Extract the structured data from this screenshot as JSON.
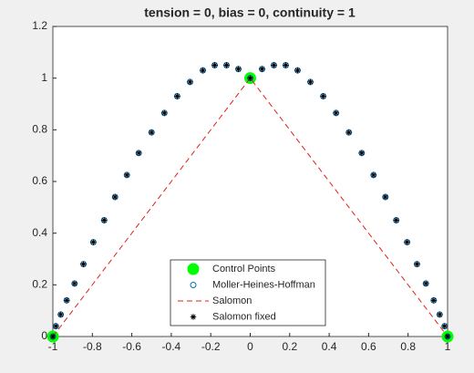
{
  "chart_data": {
    "type": "scatter",
    "title": "tension = 0, bias = 0, continuity = 1",
    "xlim": [
      -1,
      1
    ],
    "ylim": [
      0,
      1.2
    ],
    "xticks": [
      -1,
      -0.8,
      -0.6,
      -0.4,
      -0.2,
      0,
      0.2,
      0.4,
      0.6,
      0.8,
      1
    ],
    "yticks": [
      0,
      0.2,
      0.4,
      0.6,
      0.8,
      1,
      1.2
    ],
    "legend": "south",
    "series": [
      {
        "name": "Control Points",
        "color": "#00ff00",
        "marker": "filled-circle",
        "x": [
          -1,
          0,
          1
        ],
        "values": [
          0,
          1,
          0
        ]
      },
      {
        "name": "Moller-Heines-Hoffman",
        "color": "#0072bd",
        "marker": "circle",
        "x": [
          -1,
          -0.985,
          -0.96,
          -0.93,
          -0.89,
          -0.845,
          -0.795,
          -0.74,
          -0.685,
          -0.625,
          -0.565,
          -0.5,
          -0.435,
          -0.37,
          -0.305,
          -0.24,
          -0.18,
          -0.12,
          -0.06,
          0,
          0.06,
          0.12,
          0.18,
          0.24,
          0.305,
          0.37,
          0.435,
          0.5,
          0.565,
          0.625,
          0.685,
          0.74,
          0.795,
          0.845,
          0.89,
          0.93,
          0.96,
          0.985,
          1
        ],
        "values": [
          0,
          0.04,
          0.085,
          0.14,
          0.205,
          0.28,
          0.365,
          0.45,
          0.54,
          0.625,
          0.71,
          0.79,
          0.865,
          0.93,
          0.985,
          1.03,
          1.05,
          1.05,
          1.035,
          1,
          1.035,
          1.05,
          1.05,
          1.03,
          0.985,
          0.93,
          0.865,
          0.79,
          0.71,
          0.625,
          0.54,
          0.45,
          0.365,
          0.28,
          0.205,
          0.14,
          0.085,
          0.04,
          0
        ]
      },
      {
        "name": "Salomon",
        "color": "#e0201b",
        "marker": "dashed-line",
        "x": [
          -1,
          0,
          1
        ],
        "values": [
          0,
          1,
          0
        ]
      },
      {
        "name": "Salomon fixed",
        "color": "#000000",
        "marker": "asterisk",
        "x": [
          -1,
          -0.985,
          -0.96,
          -0.93,
          -0.89,
          -0.845,
          -0.795,
          -0.74,
          -0.685,
          -0.625,
          -0.565,
          -0.5,
          -0.435,
          -0.37,
          -0.305,
          -0.24,
          -0.18,
          -0.12,
          -0.06,
          0,
          0.06,
          0.12,
          0.18,
          0.24,
          0.305,
          0.37,
          0.435,
          0.5,
          0.565,
          0.625,
          0.685,
          0.74,
          0.795,
          0.845,
          0.89,
          0.93,
          0.96,
          0.985,
          1
        ],
        "values": [
          0,
          0.04,
          0.085,
          0.14,
          0.205,
          0.28,
          0.365,
          0.45,
          0.54,
          0.625,
          0.71,
          0.79,
          0.865,
          0.93,
          0.985,
          1.03,
          1.05,
          1.05,
          1.035,
          1,
          1.035,
          1.05,
          1.05,
          1.03,
          0.985,
          0.93,
          0.865,
          0.79,
          0.71,
          0.625,
          0.54,
          0.45,
          0.365,
          0.28,
          0.205,
          0.14,
          0.085,
          0.04,
          0
        ]
      }
    ]
  }
}
